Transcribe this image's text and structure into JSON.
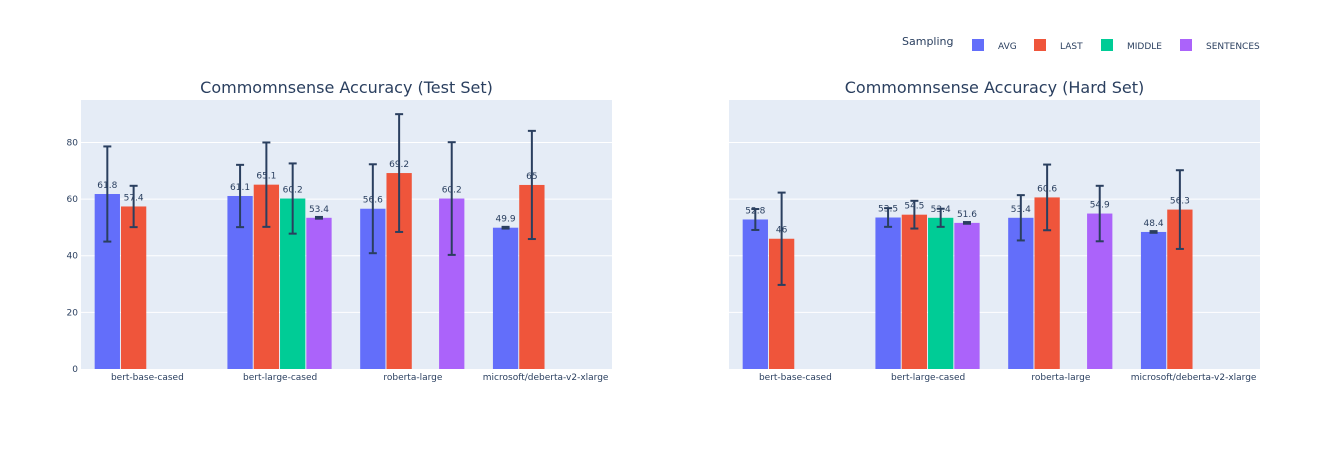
{
  "chart_data": {
    "type": "bar",
    "legend": {
      "title": "Sampling",
      "placement": "top-right",
      "entries": [
        {
          "name": "AVG",
          "color": "#636efa"
        },
        {
          "name": "LAST",
          "color": "#ef553b"
        },
        {
          "name": "MIDDLE",
          "color": "#00cc96"
        },
        {
          "name": "SENTENCES",
          "color": "#ab63fa"
        }
      ]
    },
    "grid": true,
    "panels": [
      {
        "title": "Commomnsense Accuracy (Test Set)",
        "categories": [
          "bert-base-cased",
          "bert-large-cased",
          "roberta-large",
          "microsoft/deberta-v2-xlarge"
        ],
        "ylim": [
          0,
          95
        ],
        "yticks": [
          0,
          20,
          40,
          60,
          80
        ],
        "show_yticks": true,
        "series": [
          {
            "name": "AVG",
            "values": [
              61.8,
              61.1,
              56.6,
              49.9
            ],
            "labels": [
              "61.8",
              "61.1",
              "56.6",
              "49.9"
            ],
            "err": [
              16.8,
              11,
              15.7,
              0.3
            ]
          },
          {
            "name": "LAST",
            "values": [
              57.4,
              65.1,
              69.2,
              65
            ],
            "labels": [
              "57.4",
              "65.1",
              "69.2",
              "65"
            ],
            "err": [
              7.3,
              14.9,
              20.8,
              19.1
            ]
          },
          {
            "name": "MIDDLE",
            "values": [
              null,
              60.2,
              null,
              null
            ],
            "labels": [
              "",
              "60.2",
              "",
              ""
            ],
            "err": [
              null,
              12.4,
              null,
              null
            ]
          },
          {
            "name": "SENTENCES",
            "values": [
              null,
              53.4,
              60.2,
              null
            ],
            "labels": [
              "",
              "53.4",
              "60.2",
              ""
            ],
            "err": [
              null,
              0.3,
              19.9,
              null
            ]
          }
        ]
      },
      {
        "title": "Commomnsense Accuracy (Hard Set)",
        "categories": [
          "bert-base-cased",
          "bert-large-cased",
          "roberta-large",
          "microsoft/deberta-v2-xlarge"
        ],
        "ylim": [
          0,
          95
        ],
        "yticks": [
          0,
          20,
          40,
          60,
          80
        ],
        "show_yticks": false,
        "series": [
          {
            "name": "AVG",
            "values": [
              52.8,
              53.5,
              53.4,
              48.4
            ],
            "labels": [
              "52.8",
              "53.5",
              "53.4",
              "48.4"
            ],
            "err": [
              3.7,
              3.3,
              8,
              0.3
            ]
          },
          {
            "name": "LAST",
            "values": [
              46,
              54.5,
              60.6,
              56.3
            ],
            "labels": [
              "46",
              "54.5",
              "60.6",
              "56.3"
            ],
            "err": [
              16.3,
              4.9,
              11.6,
              13.9
            ]
          },
          {
            "name": "MIDDLE",
            "values": [
              null,
              53.4,
              null,
              null
            ],
            "labels": [
              "",
              "53.4",
              "",
              ""
            ],
            "err": [
              null,
              3.2,
              null,
              null
            ]
          },
          {
            "name": "SENTENCES",
            "values": [
              null,
              51.6,
              54.9,
              null
            ],
            "labels": [
              "",
              "51.6",
              "54.9",
              ""
            ],
            "err": [
              null,
              0.3,
              9.8,
              null
            ]
          }
        ]
      }
    ]
  }
}
